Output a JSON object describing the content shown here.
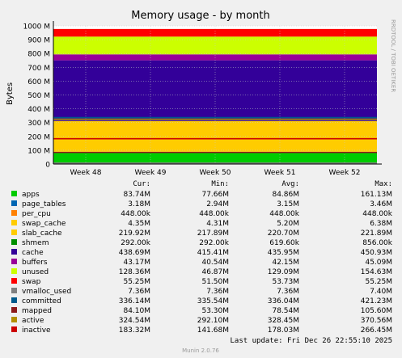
{
  "chart_data": {
    "type": "area",
    "title": "Memory usage - by month",
    "ylabel": "Bytes",
    "xlabel": "",
    "ylim": [
      0,
      1000000000
    ],
    "y_ticks": [
      {
        "value": 0,
        "label": "0"
      },
      {
        "value": 100000000,
        "label": "100 M"
      },
      {
        "value": 200000000,
        "label": "200 M"
      },
      {
        "value": 300000000,
        "label": "300 M"
      },
      {
        "value": 400000000,
        "label": "400 M"
      },
      {
        "value": 500000000,
        "label": "500 M"
      },
      {
        "value": 600000000,
        "label": "600 M"
      },
      {
        "value": 700000000,
        "label": "700 M"
      },
      {
        "value": 800000000,
        "label": "800 M"
      },
      {
        "value": 900000000,
        "label": "900 M"
      },
      {
        "value": 1000000000,
        "label": "1000 M"
      }
    ],
    "x_ticks": [
      "Week 48",
      "Week 49",
      "Week 50",
      "Week 51",
      "Week 52"
    ],
    "grid": true,
    "side_label": "RRDTOOL / TOBI OETIKER",
    "stack_order": [
      "apps",
      "page_tables",
      "per_cpu",
      "swap_cache",
      "slab_cache",
      "shmem",
      "cache",
      "buffers",
      "unused",
      "swap"
    ],
    "line_order": [
      "vmalloc_used",
      "committed",
      "mapped",
      "active",
      "inactive"
    ],
    "columns": [
      "",
      "Cur:",
      "Min:",
      "Avg:",
      "Max:"
    ],
    "series": [
      {
        "name": "apps",
        "color": "#00cc00",
        "kind": "area",
        "cur": "83.74M",
        "min": "77.66M",
        "avg": "84.86M",
        "max": "161.13M",
        "value": 83740000
      },
      {
        "name": "page_tables",
        "color": "#0066b3",
        "kind": "area",
        "cur": "3.18M",
        "min": "2.94M",
        "avg": "3.15M",
        "max": "3.46M",
        "value": 3180000
      },
      {
        "name": "per_cpu",
        "color": "#ff8000",
        "kind": "area",
        "cur": "448.00k",
        "min": "448.00k",
        "avg": "448.00k",
        "max": "448.00k",
        "value": 448000
      },
      {
        "name": "swap_cache",
        "color": "#ffcc00",
        "kind": "area",
        "cur": "4.35M",
        "min": "4.31M",
        "avg": "5.20M",
        "max": "6.38M",
        "value": 4350000
      },
      {
        "name": "slab_cache",
        "color": "#ffcc00",
        "kind": "area",
        "cur": "219.92M",
        "min": "217.89M",
        "avg": "220.70M",
        "max": "221.89M",
        "value": 219920000
      },
      {
        "name": "shmem",
        "color": "#008f00",
        "kind": "area",
        "cur": "292.00k",
        "min": "292.00k",
        "avg": "619.60k",
        "max": "856.00k",
        "value": 292000
      },
      {
        "name": "cache",
        "color": "#330099",
        "kind": "area",
        "cur": "438.69M",
        "min": "415.41M",
        "avg": "435.95M",
        "max": "450.93M",
        "value": 438690000
      },
      {
        "name": "buffers",
        "color": "#990099",
        "kind": "area",
        "cur": "43.17M",
        "min": "40.54M",
        "avg": "42.15M",
        "max": "45.09M",
        "value": 43170000
      },
      {
        "name": "unused",
        "color": "#ccff00",
        "kind": "area",
        "cur": "128.36M",
        "min": "46.87M",
        "avg": "129.09M",
        "max": "154.63M",
        "value": 128360000
      },
      {
        "name": "swap",
        "color": "#ff0000",
        "kind": "area",
        "cur": "55.25M",
        "min": "51.50M",
        "avg": "53.73M",
        "max": "55.25M",
        "value": 55250000
      },
      {
        "name": "vmalloc_used",
        "color": "#808080",
        "kind": "line",
        "cur": "7.36M",
        "min": "7.36M",
        "avg": "7.36M",
        "max": "7.40M",
        "value": 7360000
      },
      {
        "name": "committed",
        "color": "#005a8c",
        "kind": "line",
        "cur": "336.14M",
        "min": "335.54M",
        "avg": "336.04M",
        "max": "421.23M",
        "value": 336140000
      },
      {
        "name": "mapped",
        "color": "#8c1a1a",
        "kind": "line",
        "cur": "84.10M",
        "min": "53.30M",
        "avg": "78.54M",
        "max": "105.60M",
        "value": 84100000
      },
      {
        "name": "active",
        "color": "#b38f00",
        "kind": "line",
        "cur": "324.54M",
        "min": "292.10M",
        "avg": "328.45M",
        "max": "370.56M",
        "value": 324540000
      },
      {
        "name": "inactive",
        "color": "#cc0000",
        "kind": "line",
        "cur": "183.32M",
        "min": "141.68M",
        "avg": "178.03M",
        "max": "266.45M",
        "value": 183320000
      }
    ]
  },
  "footer": {
    "last_update": "Last update: Fri Dec 26 22:55:10 2025",
    "munin_version": "Munin 2.0.76"
  },
  "colors": {
    "background": "#f0f0f0",
    "plot_background": "#ffffff",
    "grid": "#c8c8c8",
    "axis": "#000000",
    "text": "#000000",
    "muted_text": "#999999"
  }
}
